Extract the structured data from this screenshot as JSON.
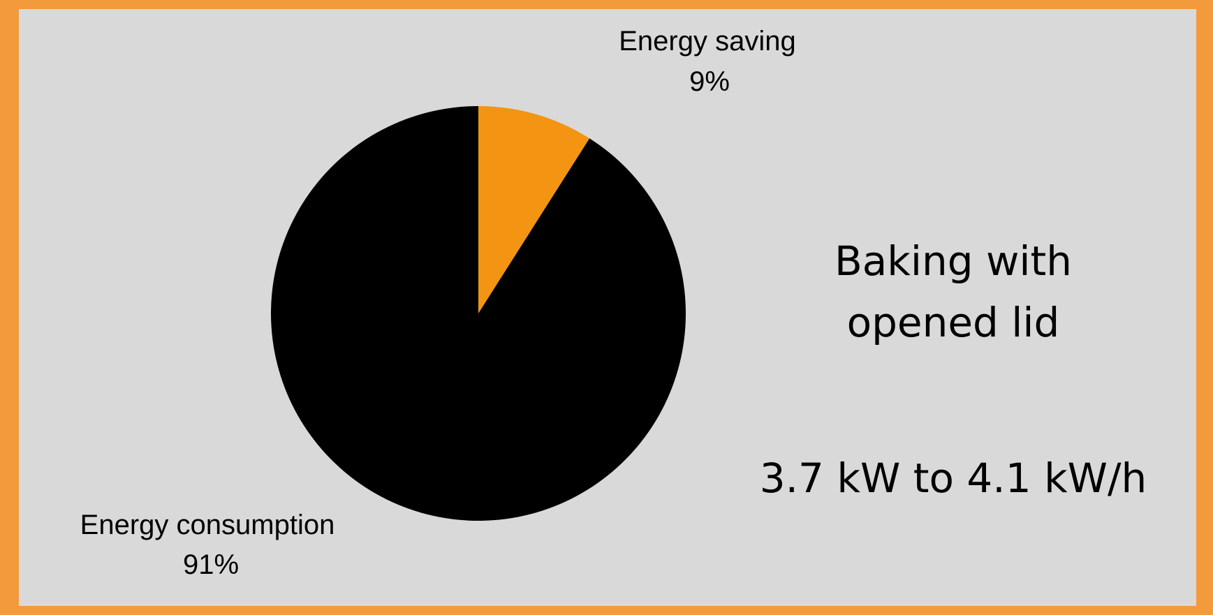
{
  "chart_data": {
    "type": "pie",
    "slices": [
      {
        "label": "Energy saving",
        "value": 9,
        "value_label": "9%",
        "color": "#f39413"
      },
      {
        "label": "Energy consumption",
        "value": 91,
        "value_label": "91%",
        "color": "#000000"
      }
    ],
    "start_angle": "12 o'clock, clockwise"
  },
  "title_lines": [
    "Baking with",
    "opened lid"
  ],
  "subtitle": "3.7 kW to 4.1 kW/h",
  "colors": {
    "frame": "#f39a3c",
    "background": "#d9d9d9"
  }
}
